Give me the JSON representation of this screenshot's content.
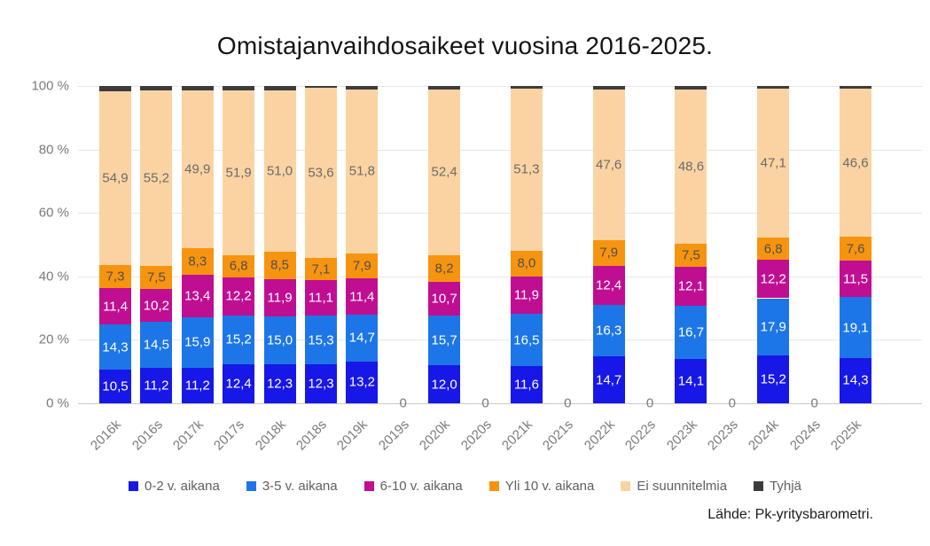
{
  "title": "Omistajanvaihdosaikeet vuosina 2016-2025.",
  "source": "Lähde: Pk-yritysbarometri.",
  "chart_data": {
    "type": "bar",
    "stacked": true,
    "unit": "%",
    "ylim": [
      0,
      100
    ],
    "grid": true,
    "legend_position": "bottom",
    "decimal_separator": ",",
    "empty_category_label": "0",
    "y_ticks": [
      {
        "value": 0,
        "label": "0 %"
      },
      {
        "value": 20,
        "label": "20 %"
      },
      {
        "value": 40,
        "label": "40 %"
      },
      {
        "value": 60,
        "label": "60 %"
      },
      {
        "value": 80,
        "label": "80 %"
      },
      {
        "value": 100,
        "label": "100 %"
      }
    ],
    "categories": [
      "2016k",
      "2016s",
      "2017k",
      "2017s",
      "2018k",
      "2018s",
      "2019k",
      "2019s",
      "2020k",
      "2020s",
      "2021k",
      "2021s",
      "2022k",
      "2022s",
      "2023k",
      "2023s",
      "2024k",
      "2024s",
      "2025k"
    ],
    "series": [
      {
        "name": "0-2 v. aikana",
        "color": "#1717e8",
        "label_color": "#ffffff",
        "values": [
          10.5,
          11.2,
          11.2,
          12.4,
          12.3,
          12.3,
          13.2,
          0,
          12.0,
          0,
          11.6,
          0,
          14.7,
          0,
          14.1,
          0,
          15.2,
          0,
          14.3
        ]
      },
      {
        "name": "3-5 v. aikana",
        "color": "#1d76e8",
        "label_color": "#ffffff",
        "values": [
          14.3,
          14.5,
          15.9,
          15.2,
          15.0,
          15.3,
          14.7,
          0,
          15.7,
          0,
          16.5,
          0,
          16.3,
          0,
          16.7,
          0,
          17.9,
          0,
          19.1
        ]
      },
      {
        "name": "6-10 v. aikana",
        "color": "#c00e92",
        "label_color": "#ffffff",
        "values": [
          11.4,
          10.2,
          13.4,
          12.2,
          11.9,
          11.1,
          11.4,
          0,
          10.7,
          0,
          11.9,
          0,
          12.4,
          0,
          12.1,
          0,
          12.2,
          0,
          11.5
        ]
      },
      {
        "name": "Yli 10 v. aikana",
        "color": "#f7940f",
        "label_color": "#4f4f51",
        "values": [
          7.3,
          7.5,
          8.3,
          6.8,
          8.5,
          7.1,
          7.9,
          0,
          8.2,
          0,
          8.0,
          0,
          7.9,
          0,
          7.5,
          0,
          6.8,
          0,
          7.6
        ]
      },
      {
        "name": "Ei suunnitelmia",
        "color": "#fbd3a2",
        "label_color": "#6b6b6b",
        "values": [
          54.9,
          55.2,
          49.9,
          51.9,
          51.0,
          53.6,
          51.8,
          0,
          52.4,
          0,
          51.3,
          0,
          47.6,
          0,
          48.6,
          0,
          47.1,
          0,
          46.6
        ]
      }
    ],
    "fill_series": {
      "name": "Tyhjä",
      "color": "#3c3c3c"
    }
  }
}
